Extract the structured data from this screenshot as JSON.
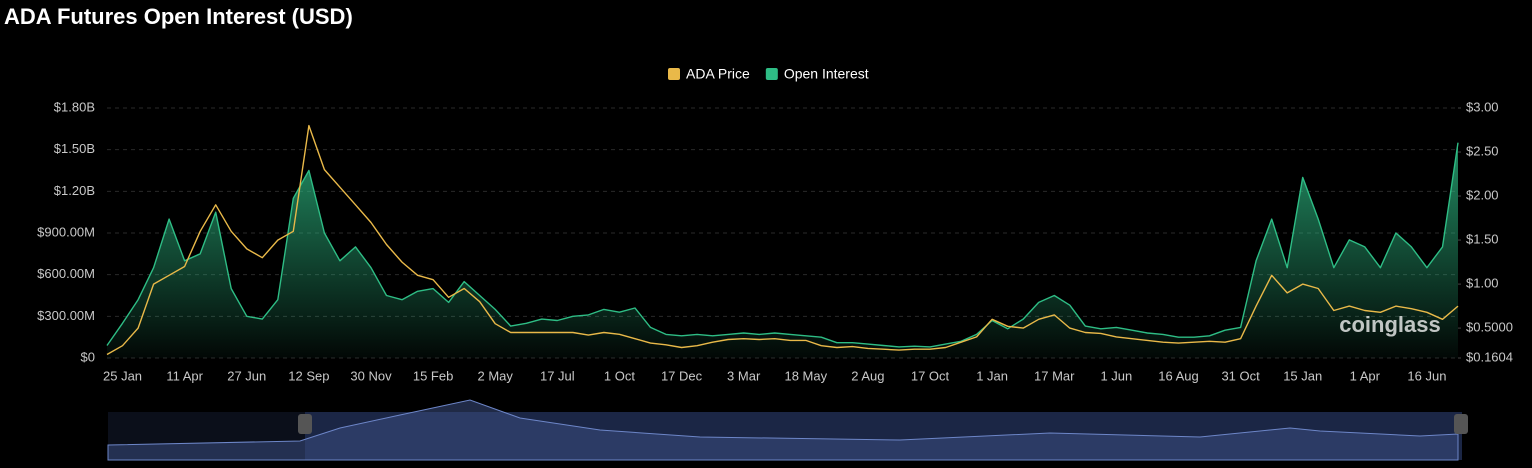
{
  "chart_data": {
    "type": "line",
    "title": "ADA Futures Open Interest (USD)",
    "watermark": "coinglass",
    "legend": "top",
    "grid": true,
    "categories": [
      null,
      "25 Jan",
      null,
      null,
      null,
      "11 Apr",
      null,
      null,
      null,
      "27 Jun",
      null,
      null,
      null,
      "12 Sep",
      null,
      null,
      null,
      "30 Nov",
      null,
      null,
      null,
      "15 Feb",
      null,
      null,
      null,
      "2 May",
      null,
      null,
      null,
      "17 Jul",
      null,
      null,
      null,
      "1 Oct",
      null,
      null,
      null,
      "17 Dec",
      null,
      null,
      null,
      "3 Mar",
      null,
      null,
      null,
      "18 May",
      null,
      null,
      null,
      "2 Aug",
      null,
      null,
      null,
      "17 Oct",
      null,
      null,
      null,
      "1 Jan",
      null,
      null,
      null,
      "17 Mar",
      null,
      null,
      null,
      "1 Jun",
      null,
      null,
      null,
      "16 Aug",
      null,
      null,
      null,
      "31 Oct",
      null,
      null,
      null,
      "15 Jan",
      null,
      null,
      null,
      "1 Apr",
      null,
      null,
      null,
      "16 Jun",
      null,
      null
    ],
    "series": [
      {
        "name": "ADA Price",
        "color": "#e9b949",
        "axis": "y2",
        "values": [
          0.2,
          0.3,
          0.5,
          1.0,
          1.1,
          1.2,
          1.6,
          1.9,
          1.6,
          1.4,
          1.3,
          1.5,
          1.6,
          2.8,
          2.3,
          2.1,
          1.9,
          1.7,
          1.45,
          1.25,
          1.1,
          1.05,
          0.85,
          0.95,
          0.8,
          0.55,
          0.45,
          0.45,
          0.45,
          0.45,
          0.45,
          0.42,
          0.45,
          0.43,
          0.38,
          0.33,
          0.31,
          0.28,
          0.3,
          0.34,
          0.37,
          0.38,
          0.37,
          0.38,
          0.36,
          0.36,
          0.3,
          0.28,
          0.29,
          0.27,
          0.26,
          0.25,
          0.26,
          0.26,
          0.28,
          0.34,
          0.4,
          0.6,
          0.52,
          0.5,
          0.6,
          0.65,
          0.5,
          0.45,
          0.44,
          0.4,
          0.38,
          0.36,
          0.34,
          0.33,
          0.34,
          0.35,
          0.34,
          0.38,
          0.75,
          1.1,
          0.9,
          1.0,
          0.95,
          0.7,
          0.75,
          0.7,
          0.68,
          0.75,
          0.72,
          0.68,
          0.6,
          0.75
        ]
      },
      {
        "name": "Open Interest",
        "color": "#2ebd85",
        "area": true,
        "values": [
          90000000.0,
          250000000.0,
          420000000.0,
          650000000.0,
          1000000000.0,
          700000000.0,
          750000000.0,
          1050000000.0,
          500000000.0,
          300000000.0,
          280000000.0,
          420000000.0,
          1150000000.0,
          1350000000.0,
          900000000.0,
          700000000.0,
          800000000.0,
          650000000.0,
          450000000.0,
          420000000.0,
          480000000.0,
          500000000.0,
          400000000.0,
          550000000.0,
          450000000.0,
          350000000.0,
          230000000.0,
          250000000.0,
          280000000.0,
          270000000.0,
          300000000.0,
          310000000.0,
          350000000.0,
          330000000.0,
          360000000.0,
          220000000.0,
          170000000.0,
          160000000.0,
          170000000.0,
          160000000.0,
          170000000.0,
          180000000.0,
          170000000.0,
          180000000.0,
          170000000.0,
          160000000.0,
          150000000.0,
          110000000.0,
          110000000.0,
          100000000.0,
          90000000.0,
          80000000.0,
          85000000.0,
          80000000.0,
          100000000.0,
          120000000.0,
          170000000.0,
          270000000.0,
          210000000.0,
          280000000.0,
          400000000.0,
          450000000.0,
          380000000.0,
          230000000.0,
          210000000.0,
          220000000.0,
          200000000.0,
          180000000.0,
          170000000.0,
          150000000.0,
          150000000.0,
          160000000.0,
          200000000.0,
          220000000.0,
          700000000.0,
          1000000000.0,
          650000000.0,
          1300000000.0,
          1000000000.0,
          650000000.0,
          850000000.0,
          800000000.0,
          650000000.0,
          900000000.0,
          800000000.0,
          650000000.0,
          800000000.0,
          1550000000.0
        ]
      }
    ],
    "ylim": [
      0,
      1800000000
    ],
    "yticks": [
      {
        "value": 0,
        "label": "$0"
      },
      {
        "value": 300000000,
        "label": "$300.00M"
      },
      {
        "value": 600000000,
        "label": "$600.00M"
      },
      {
        "value": 900000000,
        "label": "$900.00M"
      },
      {
        "value": 1200000000,
        "label": "$1.20B"
      },
      {
        "value": 1500000000,
        "label": "$1.50B"
      },
      {
        "value": 1800000000,
        "label": "$1.80B"
      }
    ],
    "y2lim": [
      0.1604,
      3.0
    ],
    "y2ticks": [
      {
        "value": 0.1604,
        "label": "$0.1604"
      },
      {
        "value": 0.5,
        "label": "$0.5000"
      },
      {
        "value": 1,
        "label": "$1.00"
      },
      {
        "value": 1.5,
        "label": "$1.50"
      },
      {
        "value": 2,
        "label": "$2.00"
      },
      {
        "value": 2.5,
        "label": "$2.50"
      },
      {
        "value": 3,
        "label": "$3.00"
      }
    ]
  }
}
